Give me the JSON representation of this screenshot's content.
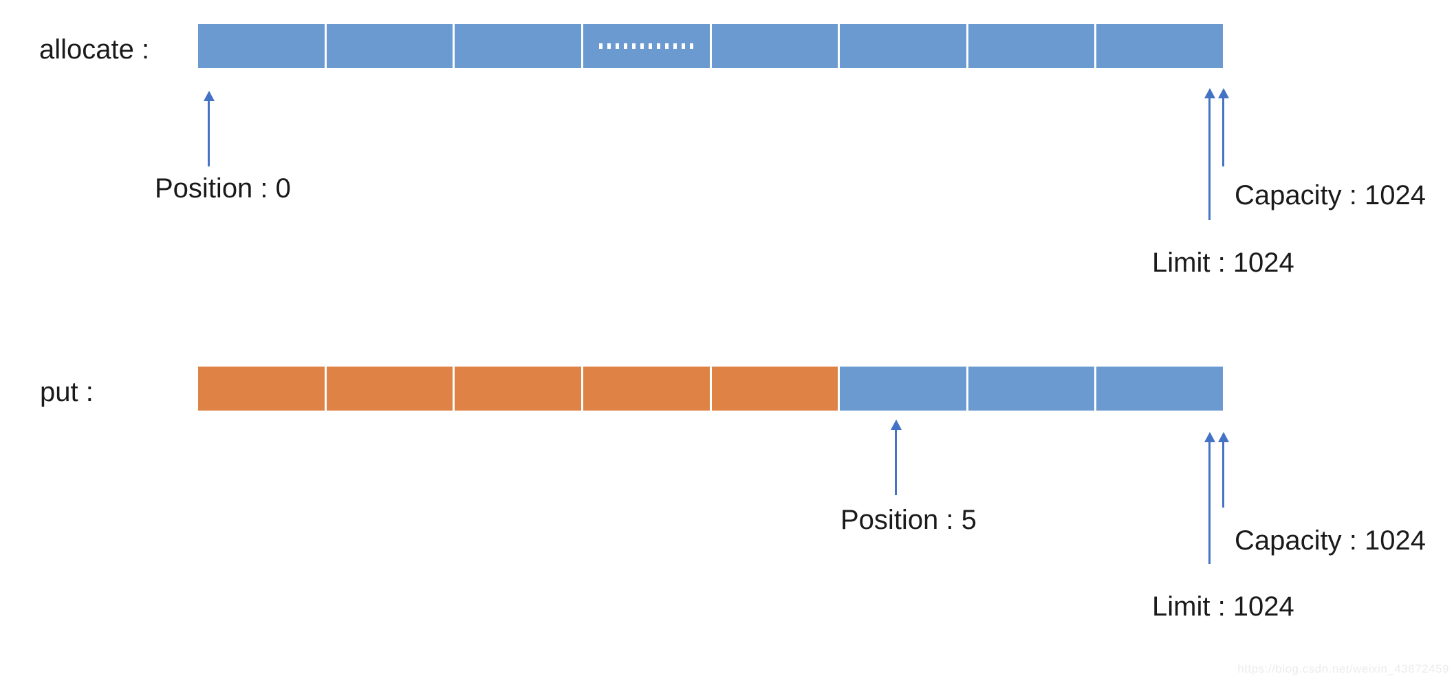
{
  "colors": {
    "empty": "#6B9AD1",
    "filled": "#DE8246",
    "arrow": "#4472C4",
    "text": "#1A1A1A",
    "watermark": "#ECECEC",
    "gap": "#FFFFFF",
    "dots": "#FFFFFF"
  },
  "rows": [
    {
      "name": "allocate",
      "label": "allocate :",
      "segment_count": 8,
      "segment_states": [
        "empty",
        "empty",
        "empty",
        "empty-dotted",
        "empty",
        "empty",
        "empty",
        "empty"
      ],
      "position": 0,
      "limit": 1024,
      "capacity": 1024,
      "annotations": {
        "position": "Position : 0",
        "capacity": "Capacity : 1024",
        "limit": "Limit : 1024"
      }
    },
    {
      "name": "put",
      "label": "put :",
      "segment_count": 8,
      "segment_states": [
        "filled",
        "filled",
        "filled",
        "filled",
        "filled",
        "empty",
        "empty",
        "empty"
      ],
      "position": 5,
      "limit": 1024,
      "capacity": 1024,
      "annotations": {
        "position": "Position : 5",
        "capacity": "Capacity : 1024",
        "limit": "Limit : 1024"
      }
    }
  ],
  "watermark": {
    "text": "https://blog.csdn.net/weixin_43872459"
  }
}
